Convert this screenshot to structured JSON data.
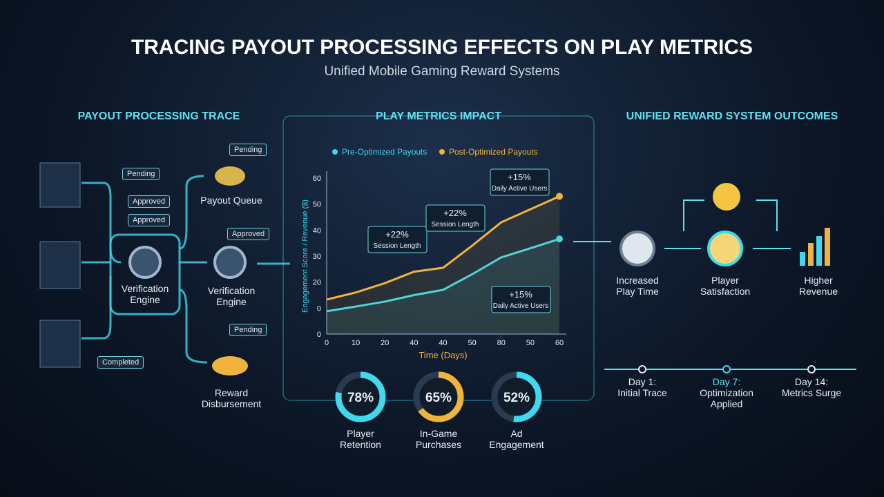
{
  "header": {
    "title": "TRACING PAYOUT PROCESSING EFFECTS ON PLAY METRICS",
    "subtitle": "Unified Mobile Gaming Reward Systems"
  },
  "trace": {
    "heading": "PAYOUT PROCESSING TRACE",
    "tags": [
      "Pending",
      "Approved",
      "Approved",
      "Completed",
      "Pending",
      "Approved",
      "Pending"
    ],
    "nodes": [
      "Verification Engine",
      "Payout Queue",
      "Verification Engine",
      "Reward Disbursement"
    ]
  },
  "chart_data": {
    "type": "line",
    "title": "PLAY METRICS IMPACT",
    "xlabel": "Time (Days)",
    "ylabel": "Engagement Score / Revenue ($)",
    "categories": [
      "0",
      "10",
      "20",
      "40",
      "40",
      "50",
      "80",
      "50",
      "60"
    ],
    "ytick_labels": [
      "0",
      "0",
      "20",
      "30",
      "40",
      "50",
      "60"
    ],
    "ylim": [
      0,
      60
    ],
    "series": [
      {
        "name": "Pre-Optimized Payouts",
        "color": "#3fd8ec",
        "values": [
          8.8,
          10.6,
          12.5,
          15,
          17,
          23,
          29.5,
          33,
          36.6
        ]
      },
      {
        "name": "Post-Optimized Payouts",
        "color": "#f0b43c",
        "values": [
          13.3,
          16,
          19.6,
          24,
          25.5,
          34,
          43,
          48,
          53
        ]
      }
    ],
    "annotations": [
      {
        "value": "+22%",
        "text": "Session Length"
      },
      {
        "value": "+22%",
        "text": "Session Length"
      },
      {
        "value": "+15%",
        "text": "Daily Active Users"
      },
      {
        "value": "+15%",
        "text": "Daily Active Users"
      }
    ]
  },
  "donuts": {
    "values": [
      78,
      65,
      52
    ],
    "value_labels": [
      "78%",
      "65%",
      "52%"
    ],
    "labels": [
      "Player Retention",
      "In-Game Purchases",
      "Ad Engagement"
    ],
    "colors": [
      "#3fd8ec",
      "#f0b43c",
      "#3fd8ec"
    ]
  },
  "outcomes": {
    "heading": "UNIFIED REWARD SYSTEM OUTCOMES",
    "nodes": [
      "Increased Play Time",
      "Player Satisfaction",
      "Higher Revenue"
    ]
  },
  "timeline": {
    "steps": [
      {
        "title": "Day 1:",
        "text": "Initial Trace"
      },
      {
        "title": "Day 7:",
        "text": "Optimization Applied"
      },
      {
        "title": "Day 14:",
        "text": "Metrics Surge"
      }
    ]
  }
}
